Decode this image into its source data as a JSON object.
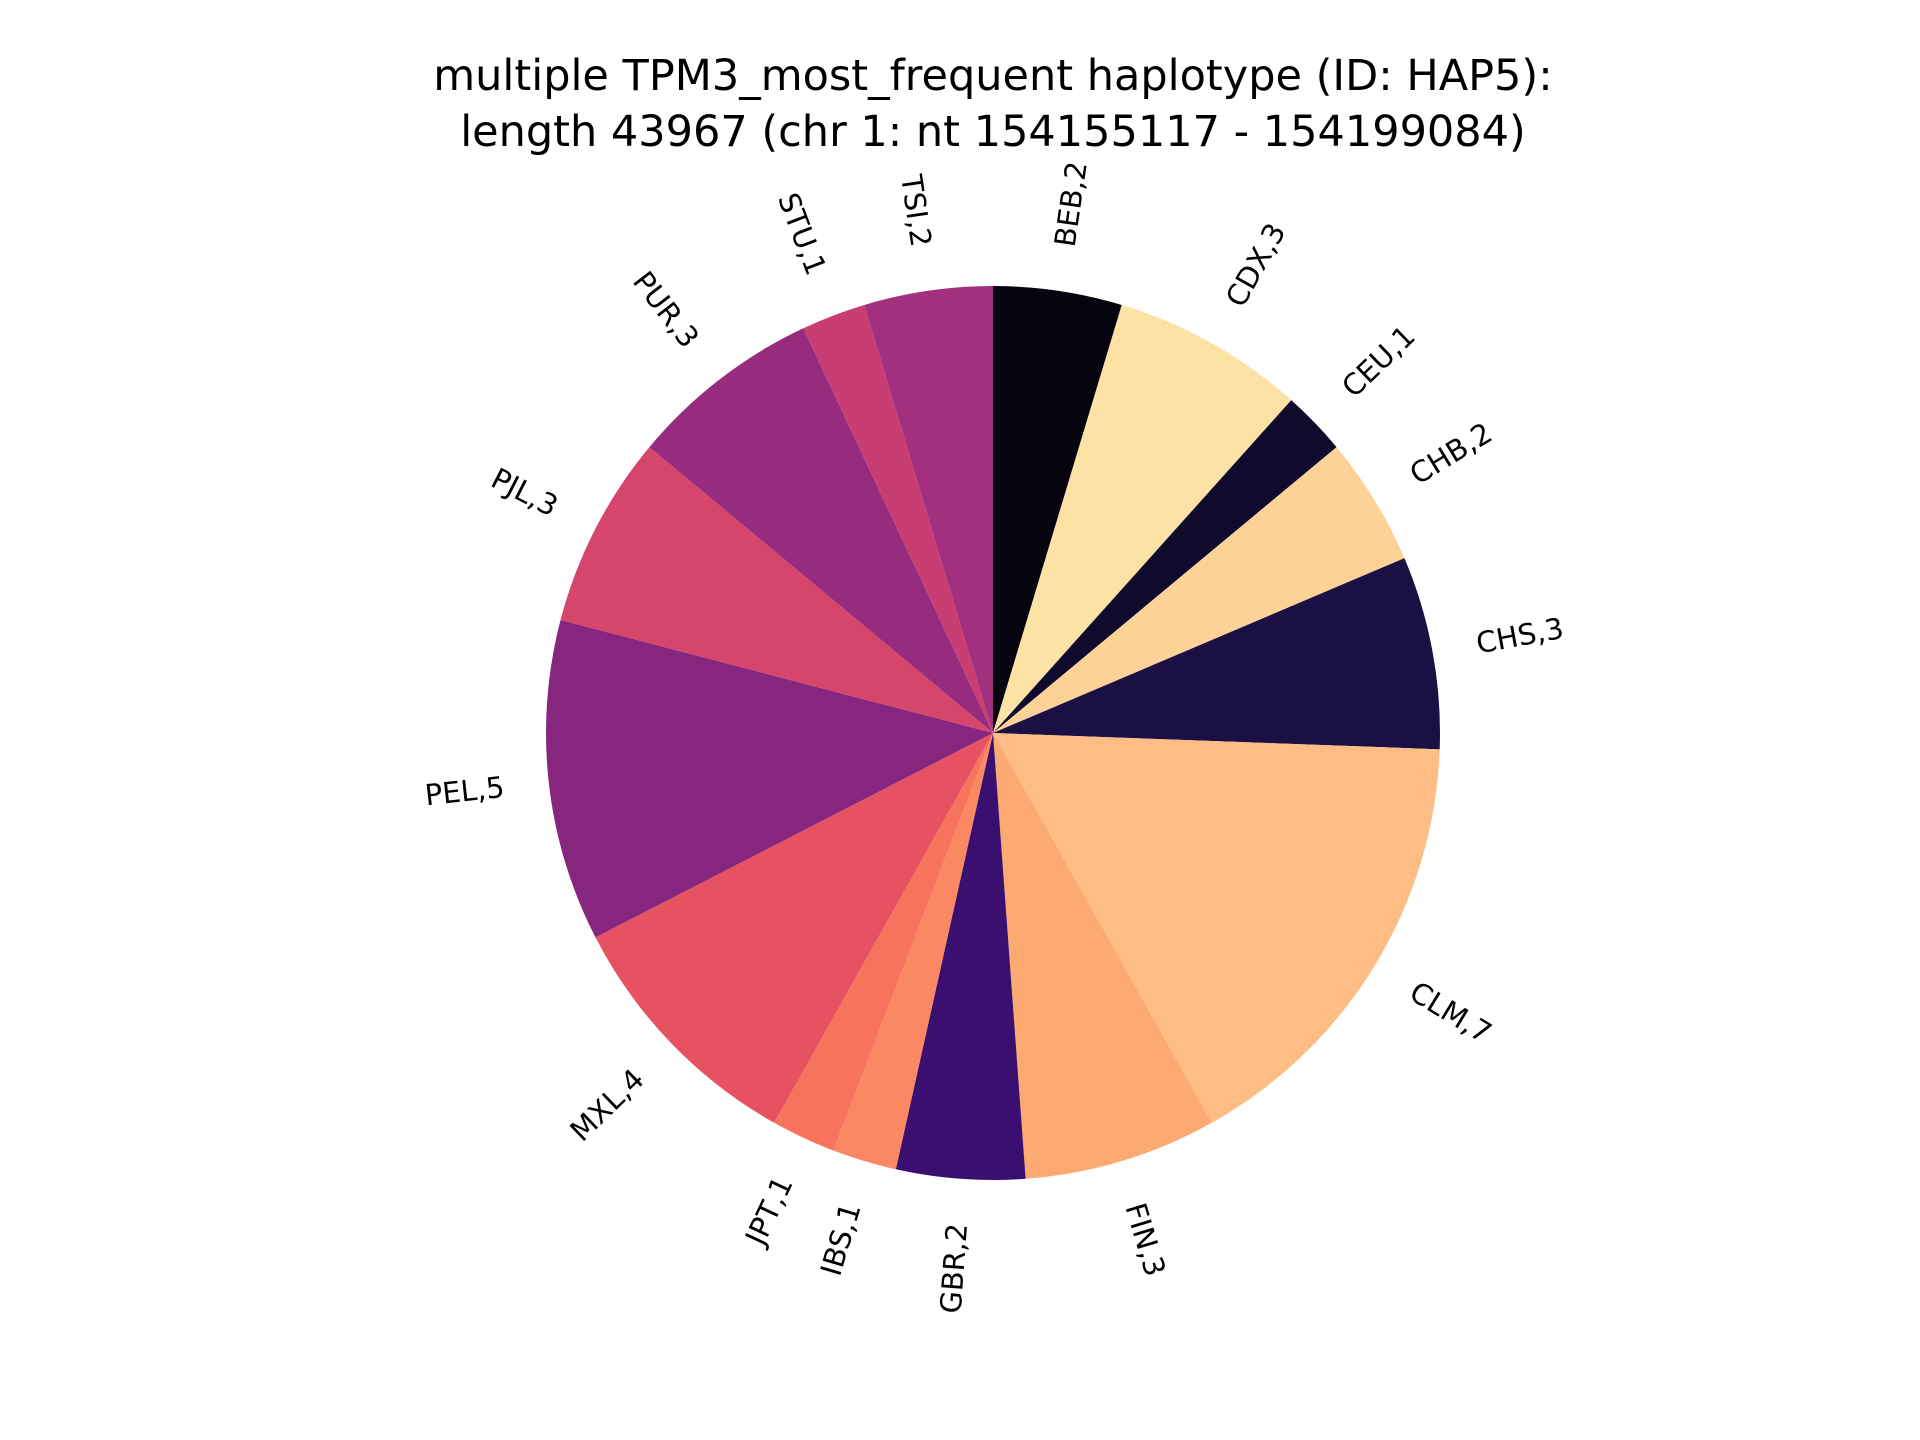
{
  "chart_data": {
    "type": "pie",
    "title_lines": [
      "multiple TPM3_most_frequent haplotype (ID: HAP5):",
      "length 43967 (chr 1: nt 154155117 - 154199084)"
    ],
    "start_angle_deg": 90,
    "direction": "clockwise",
    "slices": [
      {
        "category": "BEB",
        "value": 2,
        "label": "BEB,2",
        "color": "#06050f"
      },
      {
        "category": "CDX",
        "value": 3,
        "label": "CDX,3",
        "color": "#fde2a6"
      },
      {
        "category": "CEU",
        "value": 1,
        "label": "CEU,1",
        "color": "#100b2d"
      },
      {
        "category": "CHB",
        "value": 2,
        "label": "CHB,2",
        "color": "#fcd296"
      },
      {
        "category": "CHS",
        "value": 3,
        "label": "CHS,3",
        "color": "#1b1044"
      },
      {
        "category": "CLM",
        "value": 7,
        "label": "CLM,7",
        "color": "#fdbd84"
      },
      {
        "category": "FIN",
        "value": 3,
        "label": "FIN,3",
        "color": "#fca972"
      },
      {
        "category": "GBR",
        "value": 2,
        "label": "GBR,2",
        "color": "#3b0f70"
      },
      {
        "category": "IBS",
        "value": 1,
        "label": "IBS,1",
        "color": "#fa8862"
      },
      {
        "category": "JPT",
        "value": 1,
        "label": "JPT,1",
        "color": "#f7735c"
      },
      {
        "category": "MXL",
        "value": 4,
        "label": "MXL,4",
        "color": "#e75263"
      },
      {
        "category": "PEL",
        "value": 5,
        "label": "PEL,5",
        "color": "#87267e"
      },
      {
        "category": "PJL",
        "value": 3,
        "label": "PJL,3",
        "color": "#d6456c"
      },
      {
        "category": "PUR",
        "value": 3,
        "label": "PUR,3",
        "color": "#972c7f"
      },
      {
        "category": "STU",
        "value": 1,
        "label": "STU,1",
        "color": "#c83e73"
      },
      {
        "category": "TSI",
        "value": 2,
        "label": "TSI,2",
        "color": "#a3307e"
      }
    ]
  }
}
